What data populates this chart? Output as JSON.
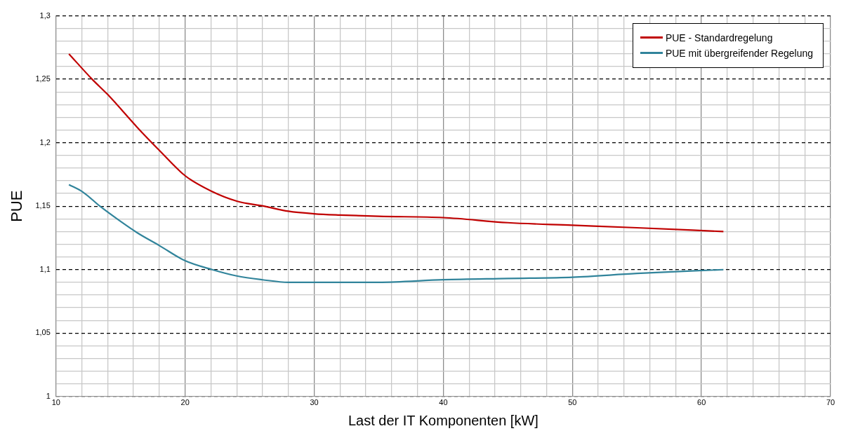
{
  "chart_data": {
    "type": "line",
    "xlabel": "Last der IT Komponenten [kW]",
    "ylabel": "PUE",
    "xlim": [
      10,
      70
    ],
    "xticks": [
      10,
      {
        "value": 12,
        "label": null
      },
      {
        "value": 14,
        "label": null
      },
      {
        "value": 16,
        "label": null
      },
      {
        "value": 18,
        "label": null
      },
      20,
      {
        "value": 22,
        "label": null
      },
      {
        "value": 24,
        "label": null
      },
      {
        "value": 26,
        "label": null
      },
      {
        "value": 28,
        "label": null
      },
      30,
      {
        "value": 32,
        "label": null
      },
      {
        "value": 34,
        "label": null
      },
      {
        "value": 36,
        "label": null
      },
      {
        "value": 38,
        "label": null
      },
      40,
      {
        "value": 42,
        "label": null
      },
      {
        "value": 44,
        "label": null
      },
      {
        "value": 46,
        "label": null
      },
      {
        "value": 48,
        "label": null
      },
      50,
      {
        "value": 52,
        "label": null
      },
      {
        "value": 54,
        "label": null
      },
      {
        "value": 56,
        "label": null
      },
      {
        "value": 58,
        "label": null
      },
      60,
      {
        "value": 62,
        "label": null
      },
      {
        "value": 64,
        "label": null
      },
      {
        "value": 66,
        "label": null
      },
      {
        "value": 68,
        "label": null
      },
      70
    ],
    "ylim": [
      1,
      1.3
    ],
    "yticks": [
      1,
      {
        "value": 1.01,
        "label": null
      },
      {
        "value": 1.02,
        "label": null
      },
      {
        "value": 1.03,
        "label": null
      },
      {
        "value": 1.04,
        "label": null
      },
      {
        "value": 1.05,
        "label": "1,05"
      },
      {
        "value": 1.06,
        "label": null
      },
      {
        "value": 1.07,
        "label": null
      },
      {
        "value": 1.08,
        "label": null
      },
      {
        "value": 1.09,
        "label": null
      },
      {
        "value": 1.1,
        "label": "1,1"
      },
      {
        "value": 1.11,
        "label": null
      },
      {
        "value": 1.12,
        "label": null
      },
      {
        "value": 1.13,
        "label": null
      },
      {
        "value": 1.14,
        "label": null
      },
      {
        "value": 1.15,
        "label": "1,15"
      },
      {
        "value": 1.16,
        "label": null
      },
      {
        "value": 1.17,
        "label": null
      },
      {
        "value": 1.18,
        "label": null
      },
      {
        "value": 1.19,
        "label": null
      },
      {
        "value": 1.2,
        "label": "1,2"
      },
      {
        "value": 1.21,
        "label": null
      },
      {
        "value": 1.22,
        "label": null
      },
      {
        "value": 1.23,
        "label": null
      },
      {
        "value": 1.24,
        "label": null
      },
      {
        "value": 1.25,
        "label": "1,25"
      },
      {
        "value": 1.26,
        "label": null
      },
      {
        "value": 1.27,
        "label": null
      },
      {
        "value": 1.28,
        "label": null
      },
      {
        "value": 1.29,
        "label": null
      },
      {
        "value": 1.3,
        "label": "1,3"
      }
    ],
    "grid": true,
    "legend": "top right",
    "marker": "none",
    "line_style": "solid",
    "series": [
      {
        "name": "PUE - Standardregelung",
        "color": "#c00000",
        "x": [
          11,
          12.8,
          14,
          16.3,
          18,
          20,
          22,
          24,
          26.1,
          28,
          30,
          32,
          35,
          40,
          45,
          50,
          55,
          61.7
        ],
        "values": [
          1.27,
          1.25,
          1.238,
          1.212,
          1.194,
          1.174,
          1.162,
          1.154,
          1.15,
          1.146,
          1.144,
          1.143,
          1.142,
          1.141,
          1.137,
          1.135,
          1.133,
          1.13
        ]
      },
      {
        "name": "PUE mit übergreifender Regelung",
        "color": "#31849b",
        "x": [
          11,
          12.1,
          13.4,
          15,
          16.3,
          18,
          20,
          22.1,
          24,
          26,
          28,
          30,
          32,
          35,
          40,
          45,
          50,
          55,
          61.7
        ],
        "values": [
          1.167,
          1.161,
          1.15,
          1.138,
          1.129,
          1.119,
          1.107,
          1.1,
          1.095,
          1.092,
          1.09,
          1.09,
          1.09,
          1.09,
          1.092,
          1.093,
          1.094,
          1.097,
          1.1
        ]
      }
    ]
  }
}
